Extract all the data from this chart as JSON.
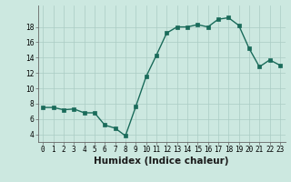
{
  "x": [
    0,
    1,
    2,
    3,
    4,
    5,
    6,
    7,
    8,
    9,
    10,
    11,
    12,
    13,
    14,
    15,
    16,
    17,
    18,
    19,
    20,
    21,
    22,
    23
  ],
  "y": [
    7.5,
    7.5,
    7.2,
    7.3,
    6.8,
    6.8,
    5.2,
    4.8,
    3.8,
    7.6,
    11.5,
    14.3,
    17.2,
    18.0,
    18.0,
    18.3,
    18.0,
    19.0,
    19.2,
    18.2,
    15.2,
    12.8,
    13.7,
    13.0
  ],
  "line_color": "#1a6b5a",
  "marker_color": "#1a6b5a",
  "bg_color": "#cce8e0",
  "grid_color": "#aaccC4",
  "xlabel": "Humidex (Indice chaleur)",
  "ylim": [
    3,
    20
  ],
  "xlim": [
    -0.5,
    23.5
  ],
  "yticks": [
    4,
    6,
    8,
    10,
    12,
    14,
    16,
    18
  ],
  "xtick_labels": [
    "0",
    "1",
    "2",
    "3",
    "4",
    "5",
    "6",
    "7",
    "8",
    "9",
    "10",
    "11",
    "12",
    "13",
    "14",
    "15",
    "16",
    "17",
    "18",
    "19",
    "20",
    "21",
    "22",
    "23"
  ],
  "xlabel_fontsize": 7.5,
  "tick_fontsize": 5.5,
  "linewidth": 1.0,
  "markersize": 2.5
}
